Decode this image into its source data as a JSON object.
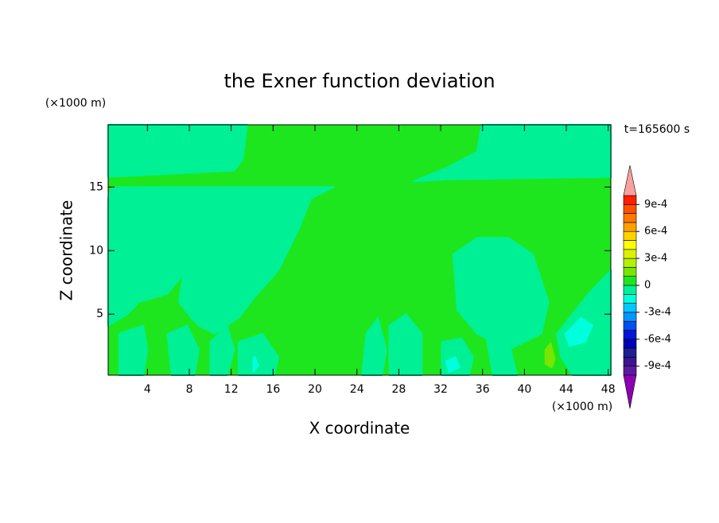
{
  "chart_data": {
    "type": "contour",
    "title": "the Exner function deviation",
    "x_label": "X coordinate",
    "y_label": "Z coordinate",
    "x_unit": "(×1000 m)",
    "y_unit": "(×1000 m)",
    "annotation": "t=165600 s",
    "xlim": [
      0.25,
      48.25
    ],
    "ylim": [
      0.2,
      19.9
    ],
    "xticks": [
      4,
      8,
      12,
      16,
      20,
      24,
      28,
      32,
      36,
      40,
      44,
      48
    ],
    "yticks": [
      5,
      10,
      15
    ],
    "levels": [
      -0.001,
      -0.0009,
      -0.0008,
      -0.0007,
      -0.0006,
      -0.0005,
      -0.0004,
      -0.0003,
      -0.0002,
      -0.0001,
      0,
      0.0001,
      0.0002,
      0.0003,
      0.0004,
      0.0005,
      0.0006,
      0.0007,
      0.0008,
      0.0009,
      0.001
    ],
    "colors": [
      "#5a1aa0",
      "#3c1490",
      "#1e1e96",
      "#0000b4",
      "#0014dc",
      "#0050f0",
      "#0096ff",
      "#00c8ff",
      "#00ffdc",
      "#00f096",
      "#1ee61e",
      "#78e600",
      "#b4f000",
      "#dcf000",
      "#ffff00",
      "#ffd200",
      "#ffa000",
      "#ff7800",
      "#ff5000",
      "#ff1e00"
    ],
    "under_color": "#8c00b4",
    "over_color": "#f8a0a0",
    "colorbar_ticks": [
      {
        "value": 0.0009,
        "label": "9e-4"
      },
      {
        "value": 0.0006,
        "label": "6e-4"
      },
      {
        "value": 0.0003,
        "label": "3e-4"
      },
      0,
      {
        "value": -0.0003,
        "label": "-3e-4"
      },
      {
        "value": -0.0006,
        "label": "-6e-4"
      },
      {
        "value": -0.0009,
        "label": "-9e-4"
      }
    ],
    "background_value": 5e-05,
    "regions": [
      {
        "value": -5e-05,
        "points": [
          [
            0.25,
            19.9
          ],
          [
            13.5,
            19.9
          ],
          [
            13.1,
            17.2
          ],
          [
            12.3,
            16.3
          ],
          [
            0.25,
            15.8
          ]
        ]
      },
      {
        "value": -5e-05,
        "points": [
          [
            35.9,
            19.9
          ],
          [
            48.25,
            19.9
          ],
          [
            48.25,
            15.8
          ],
          [
            32.5,
            15.6
          ],
          [
            29.4,
            15.45
          ],
          [
            32.8,
            16.6
          ],
          [
            35.5,
            17.8
          ]
        ]
      },
      {
        "value": -5e-05,
        "points": [
          [
            0.6,
            15.0
          ],
          [
            21.8,
            15.0
          ],
          [
            19.6,
            14.1
          ],
          [
            18.4,
            11.6
          ],
          [
            16.5,
            8.45
          ],
          [
            14.2,
            6.3
          ],
          [
            12.7,
            4.7
          ],
          [
            10.4,
            3.45
          ],
          [
            8.9,
            4.1
          ],
          [
            8.2,
            4.7
          ],
          [
            7.0,
            5.95
          ],
          [
            7.4,
            8.1
          ],
          [
            5.9,
            6.6
          ],
          [
            3.2,
            5.95
          ],
          [
            2.1,
            5.0
          ],
          [
            0.25,
            4.1
          ],
          [
            0.25,
            14.1
          ]
        ]
      },
      {
        "value": -5e-05,
        "points": [
          [
            33.2,
            9.7
          ],
          [
            35.5,
            11.0
          ],
          [
            38.5,
            11.0
          ],
          [
            40.8,
            9.7
          ],
          [
            42.3,
            5.95
          ],
          [
            41.6,
            3.45
          ],
          [
            38.5,
            2.2
          ],
          [
            35.5,
            3.45
          ],
          [
            33.6,
            5.3
          ]
        ]
      },
      {
        "value": -5e-05,
        "points": [
          [
            43.1,
            3.45
          ],
          [
            46.1,
            6.6
          ],
          [
            48.25,
            8.45
          ],
          [
            48.25,
            0.2
          ],
          [
            44.6,
            0.2
          ],
          [
            43.5,
            1.6
          ]
        ]
      },
      {
        "value": -5e-05,
        "points": [
          [
            1.3,
            3.45
          ],
          [
            3.6,
            4.1
          ],
          [
            4.0,
            2.2
          ],
          [
            3.6,
            0.2
          ],
          [
            1.3,
            0.2
          ]
        ]
      },
      {
        "value": -5e-05,
        "points": [
          [
            5.9,
            3.45
          ],
          [
            7.8,
            4.1
          ],
          [
            8.9,
            2.2
          ],
          [
            8.5,
            0.2
          ],
          [
            6.3,
            0.2
          ]
        ]
      },
      {
        "value": -5e-05,
        "points": [
          [
            10.0,
            2.8
          ],
          [
            11.6,
            4.1
          ],
          [
            12.3,
            2.2
          ],
          [
            11.6,
            0.2
          ],
          [
            10.0,
            0.2
          ]
        ]
      },
      {
        "value": -5e-05,
        "points": [
          [
            12.7,
            2.8
          ],
          [
            15.0,
            3.45
          ],
          [
            16.5,
            1.6
          ],
          [
            16.1,
            0.2
          ],
          [
            12.7,
            0.2
          ]
        ]
      },
      {
        "value": -5e-05,
        "points": [
          [
            24.9,
            3.45
          ],
          [
            26.0,
            4.7
          ],
          [
            26.8,
            2.2
          ],
          [
            26.4,
            0.2
          ],
          [
            24.5,
            0.2
          ]
        ]
      },
      {
        "value": -5e-05,
        "points": [
          [
            27.1,
            4.1
          ],
          [
            28.7,
            5.0
          ],
          [
            30.2,
            3.45
          ],
          [
            30.2,
            0.2
          ],
          [
            27.1,
            0.2
          ]
        ]
      },
      {
        "value": -5e-05,
        "points": [
          [
            32.1,
            2.8
          ],
          [
            34.0,
            3.1
          ],
          [
            35.1,
            1.6
          ],
          [
            34.7,
            0.2
          ],
          [
            32.1,
            0.2
          ]
        ]
      },
      {
        "value": -5e-05,
        "points": [
          [
            36.3,
            3.45
          ],
          [
            38.5,
            2.8
          ],
          [
            39.3,
            0.2
          ],
          [
            37.0,
            0.2
          ]
        ]
      },
      {
        "value": -0.00015,
        "points": [
          [
            14.1,
            1.3
          ],
          [
            14.2,
            1.7
          ],
          [
            14.6,
            0.95
          ],
          [
            14.1,
            0.45
          ]
        ]
      },
      {
        "value": -0.00015,
        "points": [
          [
            32.5,
            1.3
          ],
          [
            33.4,
            1.6
          ],
          [
            33.8,
            0.8
          ],
          [
            32.8,
            0.45
          ]
        ]
      },
      {
        "value": -0.00015,
        "points": [
          [
            43.9,
            3.45
          ],
          [
            45.4,
            4.7
          ],
          [
            46.5,
            4.1
          ],
          [
            45.8,
            2.8
          ],
          [
            44.3,
            2.5
          ]
        ]
      },
      {
        "value": 0.00015,
        "points": [
          [
            42.0,
            2.2
          ],
          [
            42.5,
            2.7
          ],
          [
            42.9,
            1.45
          ],
          [
            42.6,
            0.8
          ],
          [
            42.0,
            1.1
          ]
        ]
      }
    ]
  }
}
